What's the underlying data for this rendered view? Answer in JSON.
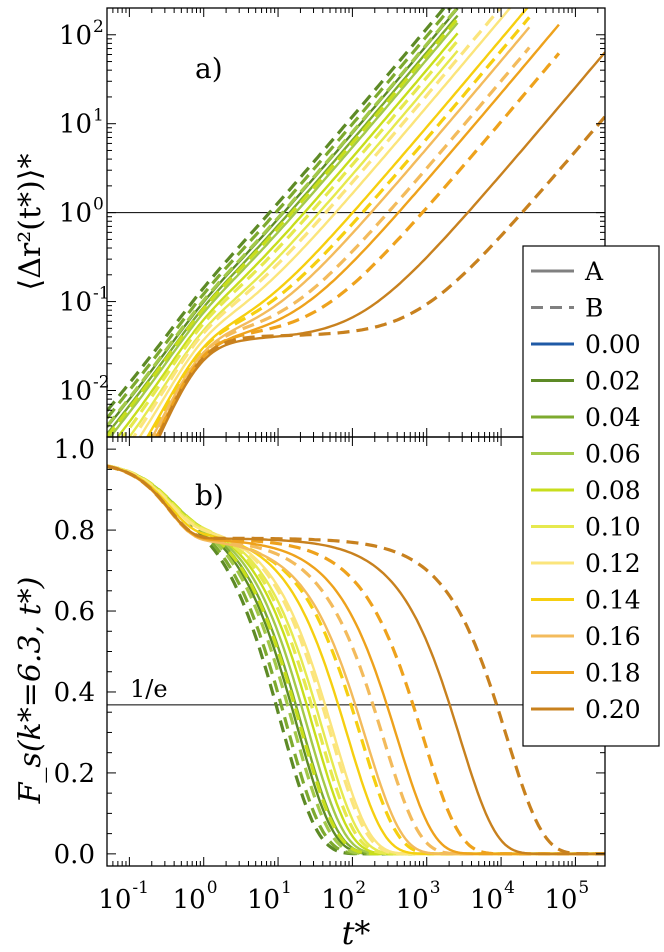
{
  "chart_data": [
    {
      "type": "line",
      "panel_label": "a)",
      "xscale": "log",
      "yscale": "log",
      "xlim": [
        0.05,
        250000
      ],
      "ylim": [
        0.003,
        200
      ],
      "ylabel": "⟨Δr²(t*)⟩*",
      "xlabel": "",
      "x_tick_labels": [],
      "y_ticks": [
        {
          "value": 0.01,
          "base": "10",
          "exp": "-2"
        },
        {
          "value": 0.1,
          "base": "10",
          "exp": "-1"
        },
        {
          "value": 1,
          "base": "10",
          "exp": "0"
        },
        {
          "value": 10,
          "base": "10",
          "exp": "1"
        },
        {
          "value": 100,
          "base": "10",
          "exp": "2"
        }
      ],
      "reference_line": {
        "y": 1,
        "label": ""
      },
      "series_note": "For each composition c, solid curve = species A, dashed curve = species B",
      "compositions": [
        {
          "c": "0.02",
          "color": "#5d8a26",
          "A": {
            "tau": 2.0,
            "tmax": 2600
          },
          "B": {
            "tau": 1.4,
            "tmax": 2600
          }
        },
        {
          "c": "0.04",
          "color": "#7daa2f",
          "A": {
            "tau": 2.4,
            "tmax": 2600
          },
          "B": {
            "tau": 1.7,
            "tmax": 2600
          }
        },
        {
          "c": "0.06",
          "color": "#a3c94a",
          "A": {
            "tau": 2.9,
            "tmax": 2600
          },
          "B": {
            "tau": 2.1,
            "tmax": 2600
          }
        },
        {
          "c": "0.08",
          "color": "#c8de1c",
          "A": {
            "tau": 3.8,
            "tmax": 2600
          },
          "B": {
            "tau": 2.8,
            "tmax": 2600
          }
        },
        {
          "c": "0.10",
          "color": "#e6e94e",
          "A": {
            "tau": 6.0,
            "tmax": 2600
          },
          "B": {
            "tau": 5.0,
            "tmax": 2600
          }
        },
        {
          "c": "0.12",
          "color": "#fbe57c",
          "A": {
            "tau": 10,
            "tmax": 24000
          },
          "B": {
            "tau": 8,
            "tmax": 24000
          }
        },
        {
          "c": "0.14",
          "color": "#f6cf10",
          "A": {
            "tau": 17,
            "tmax": 24000
          },
          "B": {
            "tau": 25,
            "tmax": 24000
          }
        },
        {
          "c": "0.16",
          "color": "#f3bb5c",
          "A": {
            "tau": 30,
            "tmax": 24000
          },
          "B": {
            "tau": 55,
            "tmax": 24000
          }
        },
        {
          "c": "0.18",
          "color": "#eea21c",
          "A": {
            "tau": 70,
            "tmax": 60000
          },
          "B": {
            "tau": 160,
            "tmax": 60000
          }
        },
        {
          "c": "0.20",
          "color": "#c8811e",
          "A": {
            "tau": 600,
            "tmax": 250000
          },
          "B": {
            "tau": 3500,
            "tmax": 250000
          }
        }
      ]
    },
    {
      "type": "line",
      "panel_label": "b)",
      "xscale": "log",
      "yscale": "linear",
      "xlim": [
        0.05,
        250000
      ],
      "ylim": [
        -0.03,
        1.03
      ],
      "ylabel": "F_s(k*=6.3, t*)",
      "xlabel": "t*",
      "x_tick_labels": [
        {
          "value": 0.1,
          "base": "10",
          "exp": "-1"
        },
        {
          "value": 1,
          "base": "10",
          "exp": "0"
        },
        {
          "value": 10,
          "base": "10",
          "exp": "1"
        },
        {
          "value": 100,
          "base": "10",
          "exp": "2"
        },
        {
          "value": 1000,
          "base": "10",
          "exp": "3"
        },
        {
          "value": 10000,
          "base": "10",
          "exp": "4"
        },
        {
          "value": 100000,
          "base": "10",
          "exp": "5"
        }
      ],
      "y_ticks": [
        "0.0",
        "0.2",
        "0.4",
        "0.6",
        "0.8",
        "1.0"
      ],
      "reference_line": {
        "y": 0.368,
        "label": "1/e"
      },
      "compositions": [
        {
          "c": "0.02",
          "color": "#5d8a26",
          "A": {
            "tau_e": 18
          },
          "B": {
            "tau_e": 11
          }
        },
        {
          "c": "0.04",
          "color": "#7daa2f",
          "A": {
            "tau_e": 21
          },
          "B": {
            "tau_e": 13
          }
        },
        {
          "c": "0.06",
          "color": "#a3c94a",
          "A": {
            "tau_e": 25
          },
          "B": {
            "tau_e": 16
          }
        },
        {
          "c": "0.08",
          "color": "#c8de1c",
          "A": {
            "tau_e": 30
          },
          "B": {
            "tau_e": 20
          }
        },
        {
          "c": "0.10",
          "color": "#e6e94e",
          "A": {
            "tau_e": 40
          },
          "B": {
            "tau_e": 35
          }
        },
        {
          "c": "0.12",
          "color": "#fbe57c",
          "A": {
            "tau_e": 55
          },
          "B": {
            "tau_e": 50
          }
        },
        {
          "c": "0.14",
          "color": "#f6cf10",
          "A": {
            "tau_e": 85
          },
          "B": {
            "tau_e": 130
          }
        },
        {
          "c": "0.16",
          "color": "#f3bb5c",
          "A": {
            "tau_e": 150
          },
          "B": {
            "tau_e": 260
          }
        },
        {
          "c": "0.18",
          "color": "#eea21c",
          "A": {
            "tau_e": 400
          },
          "B": {
            "tau_e": 900
          }
        },
        {
          "c": "0.20",
          "color": "#c8811e",
          "A": {
            "tau_e": 2800
          },
          "B": {
            "tau_e": 12000
          }
        }
      ]
    }
  ],
  "legend": {
    "placement": "right, spanning both panels",
    "style_entries": [
      {
        "label": "A",
        "dash": "solid",
        "color": "#808080"
      },
      {
        "label": "B",
        "dash": "dashed",
        "color": "#808080"
      }
    ],
    "color_entries": [
      {
        "label": "0.00",
        "color": "#1f5aa6"
      },
      {
        "label": "0.02",
        "color": "#5d8a26"
      },
      {
        "label": "0.04",
        "color": "#7daa2f"
      },
      {
        "label": "0.06",
        "color": "#a3c94a"
      },
      {
        "label": "0.08",
        "color": "#c8de1c"
      },
      {
        "label": "0.10",
        "color": "#e6e94e"
      },
      {
        "label": "0.12",
        "color": "#fbe57c"
      },
      {
        "label": "0.14",
        "color": "#f6cf10"
      },
      {
        "label": "0.16",
        "color": "#f3bb5c"
      },
      {
        "label": "0.18",
        "color": "#eea21c"
      },
      {
        "label": "0.20",
        "color": "#c8811e"
      }
    ]
  }
}
